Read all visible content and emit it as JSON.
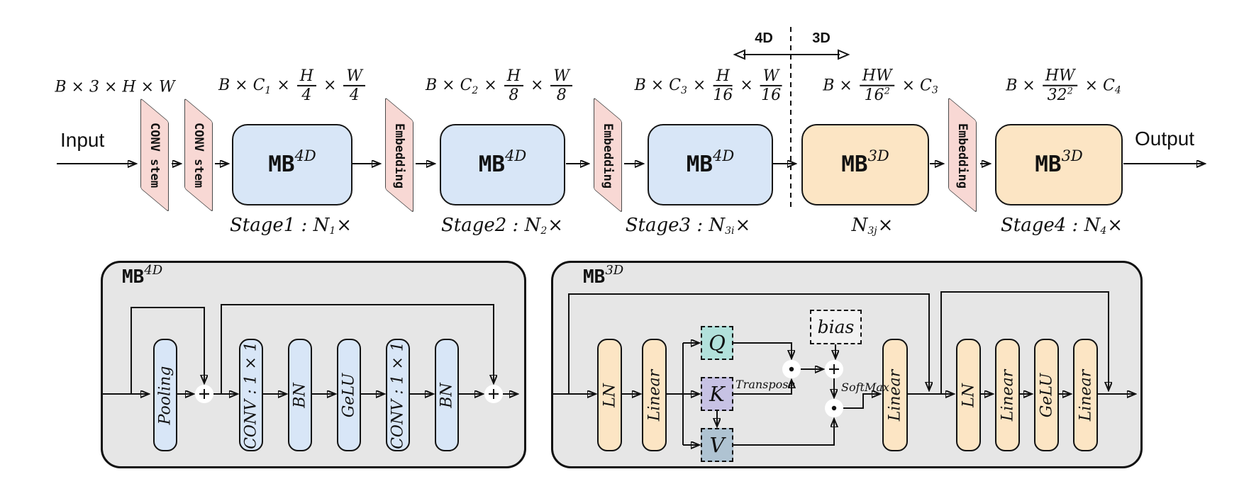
{
  "diagram": {
    "input_label": "Input",
    "output_label": "Output",
    "partition": {
      "left_label": "4D",
      "right_label": "3D"
    },
    "conv_stem_label": "CONV stem",
    "embedding_label": "Embedding",
    "mb4d": {
      "base": "MB",
      "sup": "4D"
    },
    "mb3d": {
      "base": "MB",
      "sup": "3D"
    },
    "colors": {
      "blue_block": "#d8e6f7",
      "orange_block": "#fce5c4",
      "stem_pink": "#f8d8d4",
      "panel_gray": "#e6e6e6",
      "q_teal": "#b2e1db",
      "k_lavender": "#c7c2e4",
      "v_slate": "#afc3d2",
      "bias_gray": "#f2f2f2",
      "line": "#111111"
    },
    "dims": [
      [
        {
          "t": "txt",
          "v": "B × 3 × H × W"
        }
      ],
      [
        {
          "t": "txt",
          "v": "B × C"
        },
        {
          "t": "sub",
          "v": "1"
        },
        {
          "t": "txt",
          "v": " × "
        },
        {
          "t": "frac",
          "n": "H",
          "d": "4"
        },
        {
          "t": "txt",
          "v": " × "
        },
        {
          "t": "frac",
          "n": "W",
          "d": "4"
        }
      ],
      [
        {
          "t": "txt",
          "v": "B × C"
        },
        {
          "t": "sub",
          "v": "2"
        },
        {
          "t": "txt",
          "v": " × "
        },
        {
          "t": "frac",
          "n": "H",
          "d": "8"
        },
        {
          "t": "txt",
          "v": " × "
        },
        {
          "t": "frac",
          "n": "W",
          "d": "8"
        }
      ],
      [
        {
          "t": "txt",
          "v": "B × C"
        },
        {
          "t": "sub",
          "v": "3"
        },
        {
          "t": "txt",
          "v": " × "
        },
        {
          "t": "frac",
          "n": "H",
          "d": "16"
        },
        {
          "t": "txt",
          "v": " × "
        },
        {
          "t": "frac",
          "n": "W",
          "d": "16"
        }
      ],
      [
        {
          "t": "txt",
          "v": "B × "
        },
        {
          "t": "frac",
          "n": "HW",
          "d": "16",
          "dsup": "2"
        },
        {
          "t": "txt",
          "v": " × C"
        },
        {
          "t": "sub",
          "v": "3"
        }
      ],
      [
        {
          "t": "txt",
          "v": "B × "
        },
        {
          "t": "frac",
          "n": "HW",
          "d": "32",
          "dsup": "2"
        },
        {
          "t": "txt",
          "v": " × C"
        },
        {
          "t": "sub",
          "v": "4"
        }
      ]
    ],
    "stages": [
      [
        {
          "t": "txt",
          "v": "Stage1 : N"
        },
        {
          "t": "sub",
          "v": "1"
        },
        {
          "t": "txt",
          "v": "×"
        }
      ],
      [
        {
          "t": "txt",
          "v": "Stage2 : N"
        },
        {
          "t": "sub",
          "v": "2"
        },
        {
          "t": "txt",
          "v": "×"
        }
      ],
      [
        {
          "t": "txt",
          "v": "Stage3 : N"
        },
        {
          "t": "sub",
          "v": "3i"
        },
        {
          "t": "txt",
          "v": "×"
        }
      ],
      [
        {
          "t": "txt",
          "v": "N"
        },
        {
          "t": "sub",
          "v": "3j"
        },
        {
          "t": "txt",
          "v": "×"
        }
      ],
      [
        {
          "t": "txt",
          "v": "Stage4 : N"
        },
        {
          "t": "sub",
          "v": "4"
        },
        {
          "t": "txt",
          "v": "×"
        }
      ]
    ],
    "mb4d_detail": {
      "blocks": [
        "Pooling",
        "CONV : 1 × 1",
        "BN",
        "GeLU",
        "CONV : 1 × 1",
        "BN"
      ]
    },
    "mb3d_detail": {
      "pre_blocks": [
        "LN",
        "Linear"
      ],
      "qkv": [
        "Q",
        "K",
        "V"
      ],
      "bias_label": "bias",
      "transpose_label": "Transpose",
      "softmax_label": "SoftMax",
      "attn_out_block": "Linear",
      "post_blocks": [
        "LN",
        "Linear",
        "GeLU",
        "Linear"
      ]
    }
  }
}
